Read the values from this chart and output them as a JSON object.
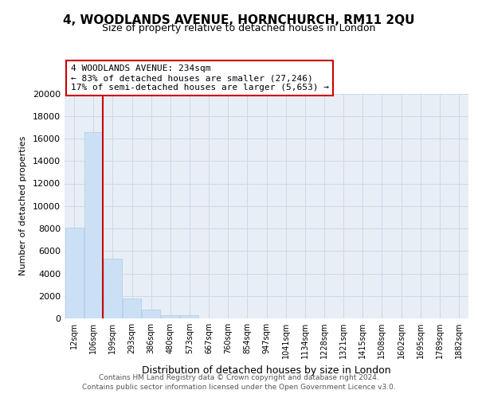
{
  "title": "4, WOODLANDS AVENUE, HORNCHURCH, RM11 2QU",
  "subtitle": "Size of property relative to detached houses in London",
  "xlabel": "Distribution of detached houses by size in London",
  "ylabel": "Number of detached properties",
  "bar_labels": [
    "12sqm",
    "106sqm",
    "199sqm",
    "293sqm",
    "386sqm",
    "480sqm",
    "573sqm",
    "667sqm",
    "760sqm",
    "854sqm",
    "947sqm",
    "1041sqm",
    "1134sqm",
    "1228sqm",
    "1321sqm",
    "1415sqm",
    "1508sqm",
    "1602sqm",
    "1695sqm",
    "1789sqm",
    "1882sqm"
  ],
  "bar_values": [
    8100,
    16600,
    5300,
    1750,
    800,
    300,
    250,
    0,
    0,
    0,
    0,
    0,
    0,
    0,
    0,
    0,
    0,
    0,
    0,
    0,
    0
  ],
  "bar_color": "#cce0f5",
  "bar_edge_color": "#aacce8",
  "vline_x": 1.5,
  "property_label": "4 WOODLANDS AVENUE: 234sqm",
  "annotation_smaller": "← 83% of detached houses are smaller (27,246)",
  "annotation_larger": "17% of semi-detached houses are larger (5,653) →",
  "vline_color": "#cc0000",
  "ylim": [
    0,
    20000
  ],
  "yticks": [
    0,
    2000,
    4000,
    6000,
    8000,
    10000,
    12000,
    14000,
    16000,
    18000,
    20000
  ],
  "footer_line1": "Contains HM Land Registry data © Crown copyright and database right 2024.",
  "footer_line2": "Contains public sector information licensed under the Open Government Licence v3.0.",
  "bg_color": "#ffffff",
  "grid_color": "#ccd9e8",
  "plot_bg": "#e8eef5",
  "fig_bg": "#ffffff"
}
